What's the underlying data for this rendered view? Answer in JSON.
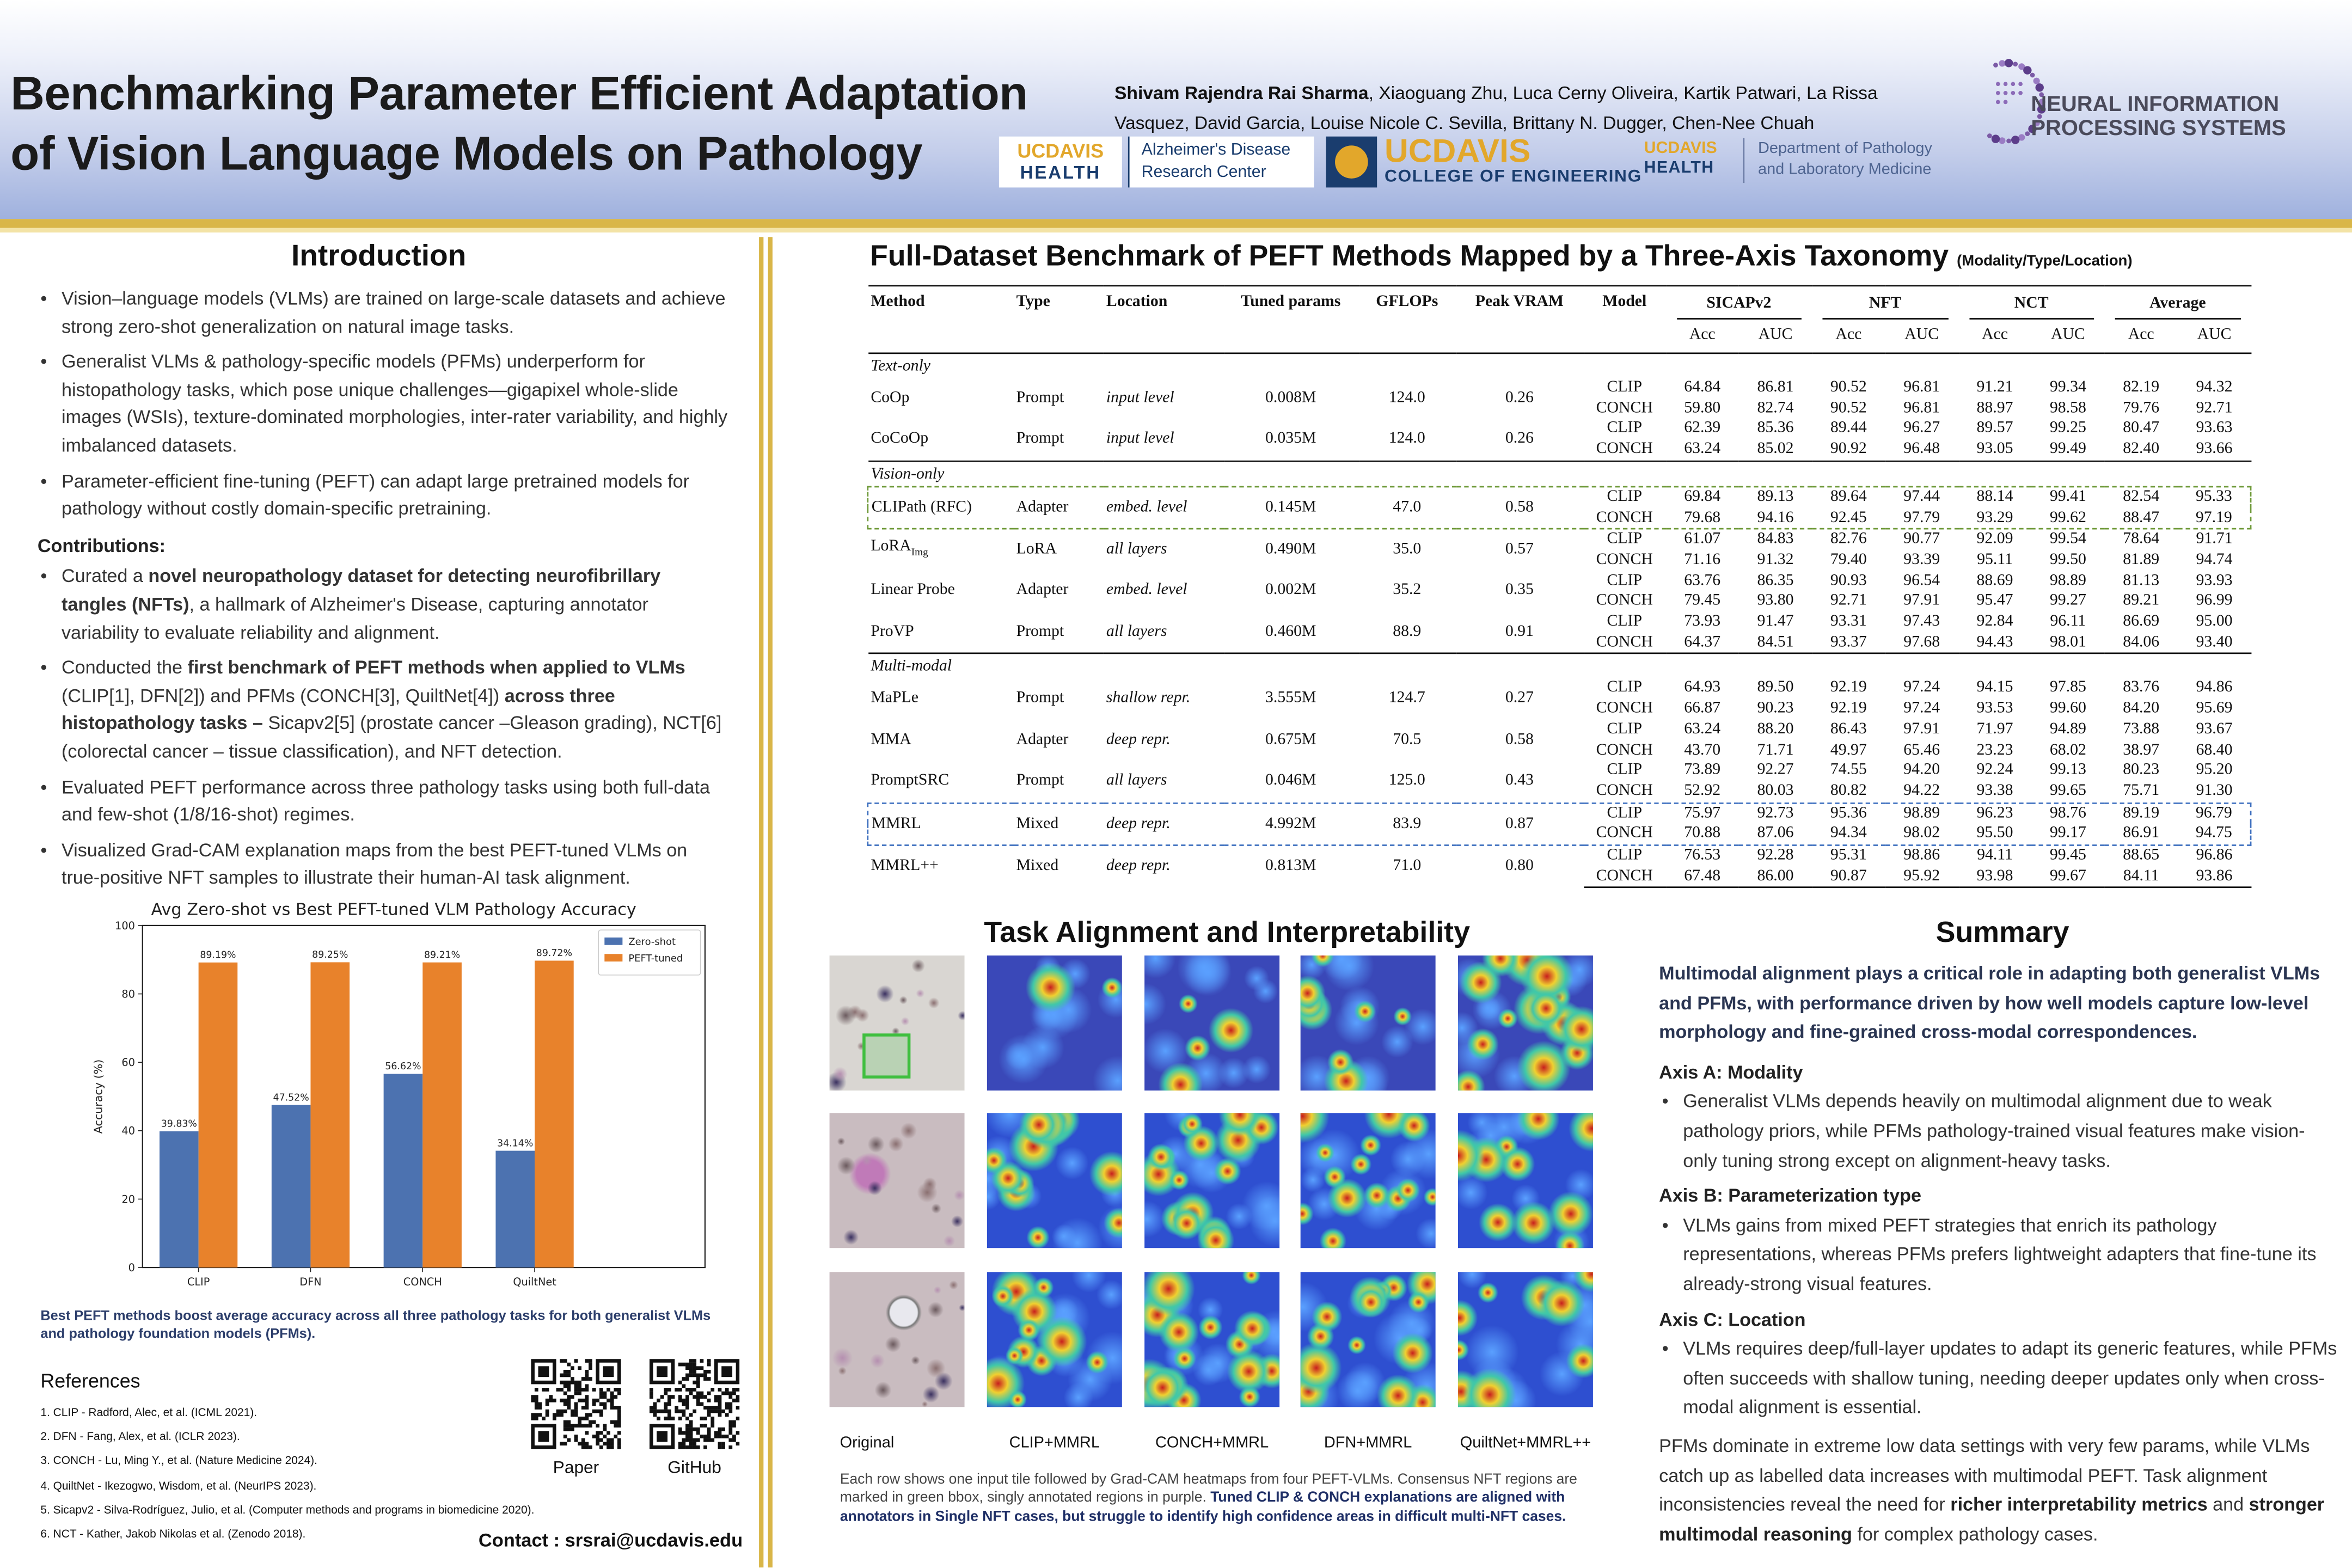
{
  "header": {
    "title": [
      "Benchmarking Parameter Efficient Adaptation",
      "of Vision Language Models on Pathology"
    ],
    "authors": [
      {
        "text": "Shivam Rajendra Rai Sharma",
        "bold": true
      },
      ", Xiaoguang Zhu, Luca Cerny Oliveira, Kartik Patwari, La Rissa Vasquez, David Garcia, Louise Nicole C. Sevilla, Brittany N. Dugger, Chen-Nee Chuah"
    ],
    "logos": {
      "ucdavis_health": [
        "UCDAVIS",
        "HEALTH"
      ],
      "adrc": [
        "Alzheimer's Disease",
        "Research Center"
      ],
      "engineering": [
        "UCDAVIS",
        "COLLEGE OF ENGINEERING"
      ],
      "pathology": [
        "UCDAVIS",
        "HEALTH",
        "Department of Pathology",
        "and Laboratory Medicine"
      ],
      "neurips": [
        "NEURAL INFORMATION",
        "PROCESSING SYSTEMS"
      ]
    }
  },
  "introduction": {
    "heading": "Introduction",
    "bullets": [
      "Vision–language models (VLMs) are trained on large-scale datasets and achieve strong zero-shot generalization on natural image tasks.",
      "Generalist VLMs & pathology-specific models (PFMs) underperform for histopathology tasks, which pose unique challenges—gigapixel whole-slide images (WSIs), texture-dominated morphologies, inter-rater variability, and highly imbalanced datasets.",
      "Parameter-efficient fine-tuning (PEFT) can adapt large pretrained models for pathology without costly domain-specific pretraining."
    ],
    "contributions_heading": "Contributions:",
    "contributions": [
      [
        "Curated a ",
        {
          "text": "novel neuropathology dataset for detecting neurofibrillary tangles (NFTs)",
          "bold": true
        },
        ", a hallmark of Alzheimer's Disease, capturing annotator variability to evaluate reliability and alignment."
      ],
      [
        "Conducted the ",
        {
          "text": "first benchmark of PEFT methods when applied to VLMs",
          "bold": true
        },
        " (CLIP[1], DFN[2]) and PFMs (CONCH[3], QuiltNet[4]) ",
        {
          "text": "across three histopathology tasks –",
          "bold": true
        },
        " Sicapv2[5] (prostate cancer –Gleason grading), NCT[6] (colorectal cancer – tissue classification), and NFT detection."
      ],
      "Evaluated PEFT performance across three pathology tasks using both full-data and few-shot (1/8/16-shot) regimes.",
      "Visualized Grad-CAM explanation maps from the best PEFT-tuned VLMs on true-positive NFT samples to illustrate their human-AI task alignment."
    ]
  },
  "chart_data": {
    "type": "bar",
    "title": "Avg Zero-shot vs Best PEFT-tuned VLM Pathology Accuracy",
    "y_label": "Accuracy (%)",
    "categories": [
      "CLIP",
      "DFN",
      "CONCH",
      "QuiltNet"
    ],
    "series": [
      {
        "name": "Zero-shot",
        "color": "#4c72b0",
        "values": [
          39.83,
          47.52,
          56.62,
          34.14
        ],
        "value_labels": [
          "39.83%",
          "47.52%",
          "56.62%",
          "34.14%"
        ]
      },
      {
        "name": "PEFT-tuned",
        "color": "#e8822b",
        "values": [
          89.19,
          89.25,
          89.21,
          89.72
        ],
        "value_labels": [
          "89.19%",
          "89.25%",
          "89.21%",
          "89.72%"
        ]
      }
    ],
    "ylim": [
      0,
      100
    ],
    "yticks": [
      0,
      20,
      40,
      60,
      80,
      100
    ],
    "grid": false,
    "legend": "upper right"
  },
  "chart_caption": "Best PEFT methods boost average accuracy across all three pathology tasks for both generalist VLMs and pathology foundation models (PFMs).",
  "references": {
    "heading": "References",
    "items": [
      "1. CLIP - Radford, Alec, et al. (ICML 2021).",
      "2. DFN - Fang, Alex, et al. (ICLR 2023).",
      "3. CONCH - Lu, Ming Y., et al. (Nature Medicine 2024).",
      "4. QuiltNet - Ikezogwo, Wisdom, et al. (NeurIPS 2023).",
      "5. Sicapv2 - Silva-Rodríguez, Julio, et al. (Computer methods and programs in biomedicine 2020).",
      "6. NCT - Kather, Jakob Nikolas et al. (Zenodo 2018)."
    ]
  },
  "qr_labels": [
    "Paper",
    "GitHub"
  ],
  "contact": "Contact : srsrai@ucdavis.edu",
  "table": {
    "title": "Full-Dataset Benchmark of PEFT Methods Mapped by a Three-Axis Taxonomy",
    "subtitle": "(Modality/Type/Location)",
    "columns": [
      "Method",
      "Type",
      "Location",
      "Tuned params",
      "GFLOPs",
      "Peak VRAM",
      "Model"
    ],
    "datasets": [
      "SICAPv2",
      "NFT",
      "NCT",
      "Average"
    ],
    "metrics": [
      "Acc",
      "AUC"
    ],
    "sections": [
      {
        "name": "Text-only",
        "methods": [
          {
            "name": "CoOp",
            "type": "Prompt",
            "location": "input level",
            "params": "0.008M",
            "gflops": "124.0",
            "vram": "0.26",
            "results": [
              {
                "model": "CLIP",
                "values": [
                  "64.84",
                  "86.81",
                  "90.52",
                  "96.81",
                  "91.21",
                  "99.34",
                  "82.19",
                  "94.32"
                ]
              },
              {
                "model": "CONCH",
                "values": [
                  "59.80",
                  "82.74",
                  "90.52",
                  "96.81",
                  "88.97",
                  "98.58",
                  "79.76",
                  "92.71"
                ]
              }
            ]
          },
          {
            "name": "CoCoOp",
            "type": "Prompt",
            "location": "input level",
            "params": "0.035M",
            "gflops": "124.0",
            "vram": "0.26",
            "results": [
              {
                "model": "CLIP",
                "values": [
                  "62.39",
                  "85.36",
                  "89.44",
                  "96.27",
                  "89.57",
                  "99.25",
                  "80.47",
                  "93.63"
                ]
              },
              {
                "model": "CONCH",
                "values": [
                  "63.24",
                  "85.02",
                  "90.92",
                  "96.48",
                  "93.05",
                  "99.49",
                  "82.40",
                  "93.66"
                ]
              }
            ]
          }
        ]
      },
      {
        "name": "Vision-only",
        "methods": [
          {
            "name": "CLIPath (RFC)",
            "type": "Adapter",
            "location": "embed. level",
            "params": "0.145M",
            "gflops": "47.0",
            "vram": "0.58",
            "highlight": "#6f9a3a",
            "results": [
              {
                "model": "CLIP",
                "values": [
                  "69.84",
                  "89.13",
                  "89.64",
                  "97.44",
                  "88.14",
                  "99.41",
                  "82.54",
                  "95.33"
                ]
              },
              {
                "model": "CONCH",
                "values": [
                  "79.68",
                  "94.16",
                  "92.45",
                  "97.79",
                  "93.29",
                  "99.62",
                  "88.47",
                  "97.19"
                ]
              }
            ]
          },
          {
            "name": "LoRA",
            "name_subscript": "Img",
            "type": "LoRA",
            "location": "all layers",
            "params": "0.490M",
            "gflops": "35.0",
            "vram": "0.57",
            "results": [
              {
                "model": "CLIP",
                "values": [
                  "61.07",
                  "84.83",
                  "82.76",
                  "90.77",
                  "92.09",
                  "99.54",
                  "78.64",
                  "91.71"
                ]
              },
              {
                "model": "CONCH",
                "values": [
                  "71.16",
                  "91.32",
                  "79.40",
                  "93.39",
                  "95.11",
                  "99.50",
                  "81.89",
                  "94.74"
                ]
              }
            ]
          },
          {
            "name": "Linear Probe",
            "type": "Adapter",
            "location": "embed. level",
            "params": "0.002M",
            "gflops": "35.2",
            "vram": "0.35",
            "results": [
              {
                "model": "CLIP",
                "values": [
                  "63.76",
                  "86.35",
                  "90.93",
                  "96.54",
                  "88.69",
                  "98.89",
                  "81.13",
                  "93.93"
                ]
              },
              {
                "model": "CONCH",
                "values": [
                  "79.45",
                  "93.80",
                  "92.71",
                  "97.91",
                  "95.47",
                  "99.27",
                  "89.21",
                  "96.99"
                ]
              }
            ]
          },
          {
            "name": "ProVP",
            "type": "Prompt",
            "location": "all layers",
            "params": "0.460M",
            "gflops": "88.9",
            "vram": "0.91",
            "results": [
              {
                "model": "CLIP",
                "values": [
                  "73.93",
                  "91.47",
                  "93.31",
                  "97.43",
                  "92.84",
                  "96.11",
                  "86.69",
                  "95.00"
                ]
              },
              {
                "model": "CONCH",
                "values": [
                  "64.37",
                  "84.51",
                  "93.37",
                  "97.68",
                  "94.43",
                  "98.01",
                  "84.06",
                  "93.40"
                ]
              }
            ]
          }
        ]
      },
      {
        "name": "Multi-modal",
        "methods": [
          {
            "name": "MaPLe",
            "type": "Prompt",
            "location": "shallow repr.",
            "params": "3.555M",
            "gflops": "124.7",
            "vram": "0.27",
            "results": [
              {
                "model": "CLIP",
                "values": [
                  "64.93",
                  "89.50",
                  "92.19",
                  "97.24",
                  "94.15",
                  "97.85",
                  "83.76",
                  "94.86"
                ]
              },
              {
                "model": "CONCH",
                "values": [
                  "66.87",
                  "90.23",
                  "92.19",
                  "97.24",
                  "93.53",
                  "99.60",
                  "84.20",
                  "95.69"
                ]
              }
            ]
          },
          {
            "name": "MMA",
            "type": "Adapter",
            "location": "deep repr.",
            "params": "0.675M",
            "gflops": "70.5",
            "vram": "0.58",
            "results": [
              {
                "model": "CLIP",
                "values": [
                  "63.24",
                  "88.20",
                  "86.43",
                  "97.91",
                  "71.97",
                  "94.89",
                  "73.88",
                  "93.67"
                ]
              },
              {
                "model": "CONCH",
                "values": [
                  "43.70",
                  "71.71",
                  "49.97",
                  "65.46",
                  "23.23",
                  "68.02",
                  "38.97",
                  "68.40"
                ]
              }
            ]
          },
          {
            "name": "PromptSRC",
            "type": "Prompt",
            "location": "all layers",
            "params": "0.046M",
            "gflops": "125.0",
            "vram": "0.43",
            "results": [
              {
                "model": "CLIP",
                "values": [
                  "73.89",
                  "92.27",
                  "74.55",
                  "94.20",
                  "92.24",
                  "99.13",
                  "80.23",
                  "95.20"
                ]
              },
              {
                "model": "CONCH",
                "values": [
                  "52.92",
                  "80.03",
                  "80.82",
                  "94.22",
                  "93.38",
                  "99.65",
                  "75.71",
                  "91.30"
                ]
              }
            ]
          },
          {
            "name": "MMRL",
            "type": "Mixed",
            "location": "deep repr.",
            "params": "4.992M",
            "gflops": "83.9",
            "vram": "0.87",
            "highlight": "#3d6fbf",
            "results": [
              {
                "model": "CLIP",
                "values": [
                  "75.97",
                  "92.73",
                  "95.36",
                  "98.89",
                  "96.23",
                  "98.76",
                  "89.19",
                  "96.79"
                ]
              },
              {
                "model": "CONCH",
                "values": [
                  "70.88",
                  "87.06",
                  "94.34",
                  "98.02",
                  "95.50",
                  "99.17",
                  "86.91",
                  "94.75"
                ]
              }
            ]
          },
          {
            "name": "MMRL++",
            "type": "Mixed",
            "location": "deep repr.",
            "params": "0.813M",
            "gflops": "71.0",
            "vram": "0.80",
            "results": [
              {
                "model": "CLIP",
                "values": [
                  "76.53",
                  "92.28",
                  "95.31",
                  "98.86",
                  "94.11",
                  "99.45",
                  "88.65",
                  "96.86"
                ]
              },
              {
                "model": "CONCH",
                "values": [
                  "67.48",
                  "86.00",
                  "90.87",
                  "95.92",
                  "93.98",
                  "99.67",
                  "84.11",
                  "93.86"
                ]
              }
            ]
          }
        ]
      }
    ]
  },
  "task_alignment": {
    "heading": "Task Alignment and Interpretability",
    "columns": [
      "Original",
      "CLIP+MMRL",
      "CONCH+MMRL",
      "DFN+MMRL",
      "QuiltNet+MMRL++"
    ],
    "caption": [
      "Each row shows one input tile followed by Grad-CAM heatmaps from four PEFT-VLMs. Consensus NFT regions are marked in green bbox, singly annotated regions in purple. ",
      {
        "text": "Tuned CLIP & CONCH explanations are aligned with annotators in Single NFT cases, but struggle to identify high confidence areas in difficult multi-NFT cases.",
        "bold": true
      }
    ]
  },
  "summary": {
    "heading": "Summary",
    "lead": "Multimodal alignment plays a critical role in adapting both generalist VLMs  and PFMs, with performance driven by how well models capture low-level morphology and fine-grained cross-modal correspondences.",
    "axes": [
      {
        "heading": "Axis A: Modality",
        "bullet": "Generalist VLMs depends heavily on multimodal alignment due to weak pathology priors, while PFMs pathology-trained visual features make vision-only tuning strong except on alignment-heavy tasks."
      },
      {
        "heading": "Axis B: Parameterization type",
        "bullet": "VLMs gains from mixed PEFT strategies that enrich its pathology representations, whereas PFMs prefers lightweight adapters that fine-tune its already-strong visual features."
      },
      {
        "heading": "Axis C: Location",
        "bullet": "VLMs requires deep/full-layer updates to adapt its generic features, while PFMs often succeeds with shallow tuning, needing deeper updates only when cross-modal alignment is essential."
      }
    ],
    "closing": [
      "PFMs dominate in extreme low data settings with very few params, while VLMs catch up as labelled data increases with multimodal PEFT. Task alignment inconsistencies reveal the need for ",
      {
        "text": "richer interpretability metrics",
        "bold": true
      },
      " and ",
      {
        "text": "stronger multimodal reasoning",
        "bold": true
      },
      " for complex pathology cases."
    ]
  }
}
